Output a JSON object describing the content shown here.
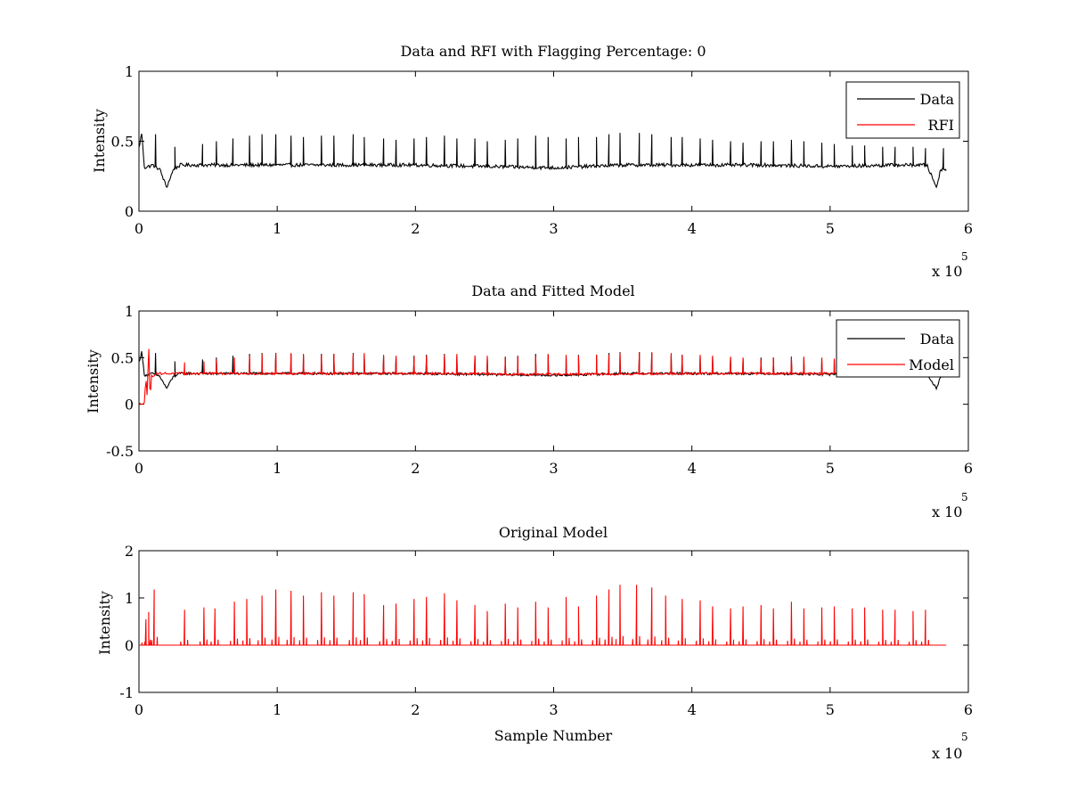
{
  "chart_data": [
    {
      "type": "line",
      "title": "Data and RFI with Flagging Percentage: 0",
      "xlabel": "",
      "ylabel": "Intensity",
      "xlim": [
        0,
        6
      ],
      "ylim": [
        0,
        1
      ],
      "x_ticks": [
        "0",
        "1",
        "2",
        "3",
        "4",
        "5",
        "6"
      ],
      "y_ticks": [
        "0",
        "0.5",
        "1"
      ],
      "x_multiplier": {
        "base": "x 10",
        "exp": "5"
      },
      "legend_position": "top-right",
      "colors": {
        "Data": "#000000",
        "RFI": "#ff0000"
      },
      "series": [
        {
          "name": "Data",
          "baseline": 0.32,
          "x": [
            0,
            0.02,
            0.04,
            0.1,
            0.15,
            0.2,
            0.25,
            0.3,
            0.5,
            1.0,
            1.5,
            2.0,
            2.5,
            3.0,
            3.5,
            4.0,
            4.5,
            5.0,
            5.5,
            5.7,
            5.77,
            5.8,
            5.84
          ],
          "values": [
            0.45,
            0.56,
            0.31,
            0.33,
            0.3,
            0.17,
            0.3,
            0.33,
            0.33,
            0.33,
            0.33,
            0.33,
            0.32,
            0.31,
            0.33,
            0.33,
            0.33,
            0.32,
            0.33,
            0.33,
            0.17,
            0.3,
            0.3
          ],
          "spikes_x": [
            0.12,
            0.26,
            0.46,
            0.56,
            0.68,
            0.8,
            0.89,
            0.99,
            1.1,
            1.19,
            1.32,
            1.41,
            1.55,
            1.63,
            1.77,
            1.86,
            1.99,
            2.08,
            2.21,
            2.3,
            2.43,
            2.52,
            2.65,
            2.74,
            2.87,
            2.96,
            3.09,
            3.18,
            3.31,
            3.4,
            3.48,
            3.62,
            3.71,
            3.85,
            3.93,
            4.06,
            4.15,
            4.28,
            4.37,
            4.5,
            4.59,
            4.72,
            4.81,
            4.94,
            5.03,
            5.16,
            5.25,
            5.38,
            5.47,
            5.6,
            5.69,
            5.82
          ],
          "spikes_y": [
            0.55,
            0.46,
            0.48,
            0.5,
            0.52,
            0.54,
            0.55,
            0.55,
            0.54,
            0.53,
            0.54,
            0.54,
            0.55,
            0.53,
            0.52,
            0.51,
            0.52,
            0.53,
            0.54,
            0.52,
            0.52,
            0.5,
            0.51,
            0.52,
            0.54,
            0.53,
            0.52,
            0.53,
            0.53,
            0.55,
            0.56,
            0.56,
            0.55,
            0.53,
            0.53,
            0.52,
            0.51,
            0.5,
            0.49,
            0.5,
            0.5,
            0.51,
            0.5,
            0.49,
            0.48,
            0.47,
            0.47,
            0.46,
            0.46,
            0.46,
            0.45,
            0.45
          ]
        },
        {
          "name": "RFI",
          "x": [],
          "values": []
        }
      ]
    },
    {
      "type": "line",
      "title": "Data and Fitted Model",
      "xlabel": "",
      "ylabel": "Intensity",
      "xlim": [
        0,
        6
      ],
      "ylim": [
        -0.5,
        1
      ],
      "x_ticks": [
        "0",
        "1",
        "2",
        "3",
        "4",
        "5",
        "6"
      ],
      "y_ticks": [
        "-0.5",
        "0",
        "0.5",
        "1"
      ],
      "x_multiplier": {
        "base": "x 10",
        "exp": "5"
      },
      "legend_position": "top-right",
      "colors": {
        "Data": "#000000",
        "Model": "#ff0000"
      },
      "series": [
        {
          "name": "Data",
          "baseline": 0.32,
          "x": [
            0,
            0.02,
            0.04,
            0.1,
            0.15,
            0.2,
            0.25,
            0.3,
            0.5,
            1.0,
            1.5,
            2.0,
            2.5,
            3.0,
            3.5,
            4.0,
            4.5,
            5.0,
            5.5,
            5.7,
            5.77,
            5.8,
            5.84
          ],
          "values": [
            0.45,
            0.56,
            0.31,
            0.33,
            0.3,
            0.17,
            0.3,
            0.33,
            0.33,
            0.33,
            0.33,
            0.33,
            0.32,
            0.31,
            0.33,
            0.33,
            0.33,
            0.32,
            0.33,
            0.33,
            0.17,
            0.3,
            0.3
          ],
          "spikes_x": [
            0.12,
            0.26,
            0.46,
            0.56,
            0.68,
            0.8,
            0.89,
            0.99,
            1.1,
            1.19,
            1.32,
            1.41,
            1.55,
            1.63,
            1.77,
            1.86,
            1.99,
            2.08,
            2.21,
            2.3,
            2.43,
            2.52,
            2.65,
            2.74,
            2.87,
            2.96,
            3.09,
            3.18,
            3.31,
            3.4,
            3.48,
            3.62,
            3.71,
            3.85,
            3.93,
            4.06,
            4.15,
            4.28,
            4.37,
            4.5,
            4.59,
            4.72,
            4.81,
            4.94,
            5.03,
            5.16,
            5.25,
            5.38,
            5.47,
            5.6,
            5.69,
            5.82
          ],
          "spikes_y": [
            0.55,
            0.46,
            0.48,
            0.5,
            0.52,
            0.54,
            0.55,
            0.55,
            0.54,
            0.53,
            0.54,
            0.54,
            0.55,
            0.53,
            0.52,
            0.51,
            0.52,
            0.53,
            0.54,
            0.52,
            0.52,
            0.5,
            0.51,
            0.52,
            0.54,
            0.53,
            0.52,
            0.53,
            0.53,
            0.55,
            0.56,
            0.56,
            0.55,
            0.53,
            0.53,
            0.52,
            0.51,
            0.5,
            0.49,
            0.5,
            0.5,
            0.51,
            0.5,
            0.49,
            0.48,
            0.47,
            0.47,
            0.46,
            0.46,
            0.46,
            0.45,
            0.45
          ]
        },
        {
          "name": "Model",
          "baseline": 0.32,
          "x": [
            0.0,
            0.04,
            0.05,
            0.06,
            0.07,
            0.08,
            0.09,
            0.1,
            0.12,
            0.3,
            1.0,
            2.0,
            3.0,
            4.0,
            5.0,
            5.84
          ],
          "values": [
            0.0,
            0.02,
            0.3,
            0.05,
            0.68,
            0.05,
            0.3,
            0.3,
            0.33,
            0.33,
            0.33,
            0.33,
            0.32,
            0.33,
            0.33,
            0.33
          ],
          "spikes_x": [
            0.33,
            0.47,
            0.56,
            0.69,
            0.8,
            0.89,
            0.99,
            1.1,
            1.19,
            1.32,
            1.41,
            1.55,
            1.63,
            1.77,
            1.86,
            1.99,
            2.08,
            2.21,
            2.3,
            2.43,
            2.52,
            2.65,
            2.74,
            2.87,
            2.96,
            3.09,
            3.18,
            3.31,
            3.4,
            3.48,
            3.62,
            3.71,
            3.85,
            3.93,
            4.06,
            4.15,
            4.28,
            4.37,
            4.5,
            4.59,
            4.72,
            4.81,
            4.94,
            5.03
          ],
          "spikes_y": [
            0.45,
            0.46,
            0.48,
            0.5,
            0.52,
            0.54,
            0.55,
            0.55,
            0.54,
            0.53,
            0.54,
            0.54,
            0.55,
            0.53,
            0.52,
            0.51,
            0.52,
            0.53,
            0.54,
            0.52,
            0.52,
            0.5,
            0.51,
            0.52,
            0.54,
            0.53,
            0.52,
            0.53,
            0.53,
            0.55,
            0.56,
            0.56,
            0.55,
            0.53,
            0.53,
            0.52,
            0.51,
            0.5,
            0.49,
            0.5,
            0.5,
            0.51,
            0.5,
            0.49
          ]
        }
      ]
    },
    {
      "type": "line",
      "title": "Original Model",
      "xlabel": "Sample Number",
      "ylabel": "Intensity",
      "xlim": [
        0,
        6
      ],
      "ylim": [
        -1,
        2
      ],
      "x_ticks": [
        "0",
        "1",
        "2",
        "3",
        "4",
        "5",
        "6"
      ],
      "y_ticks": [
        "-1",
        "0",
        "1",
        "2"
      ],
      "x_multiplier": {
        "base": "x 10",
        "exp": "5"
      },
      "legend_position": "none",
      "colors": {
        "Model": "#ff0000"
      },
      "series": [
        {
          "name": "",
          "baseline": 0.0,
          "x": [
            0.0,
            5.84
          ],
          "values": [
            0.0,
            0.0
          ],
          "spikes_x": [
            0.05,
            0.07,
            0.11,
            0.33,
            0.47,
            0.55,
            0.69,
            0.78,
            0.89,
            0.99,
            1.1,
            1.19,
            1.32,
            1.41,
            1.55,
            1.63,
            1.77,
            1.86,
            1.99,
            2.08,
            2.21,
            2.3,
            2.43,
            2.52,
            2.65,
            2.74,
            2.87,
            2.96,
            3.09,
            3.18,
            3.31,
            3.4,
            3.48,
            3.6,
            3.71,
            3.81,
            3.93,
            4.06,
            4.15,
            4.28,
            4.37,
            4.5,
            4.59,
            4.72,
            4.81,
            4.94,
            5.03,
            5.16,
            5.25,
            5.38,
            5.47,
            5.6,
            5.69
          ],
          "spikes_y": [
            0.55,
            0.7,
            1.18,
            0.75,
            0.8,
            0.78,
            0.92,
            0.98,
            1.05,
            1.18,
            1.15,
            1.05,
            1.12,
            1.05,
            1.12,
            1.08,
            0.85,
            0.88,
            0.98,
            1.02,
            1.1,
            0.95,
            0.85,
            0.72,
            0.88,
            0.8,
            0.92,
            0.8,
            1.02,
            0.82,
            1.05,
            1.18,
            1.28,
            1.28,
            1.22,
            1.05,
            0.98,
            0.95,
            0.82,
            0.78,
            0.82,
            0.85,
            0.78,
            0.92,
            0.78,
            0.8,
            0.82,
            0.78,
            0.8,
            0.75,
            0.75,
            0.72,
            0.75
          ]
        }
      ]
    }
  ]
}
